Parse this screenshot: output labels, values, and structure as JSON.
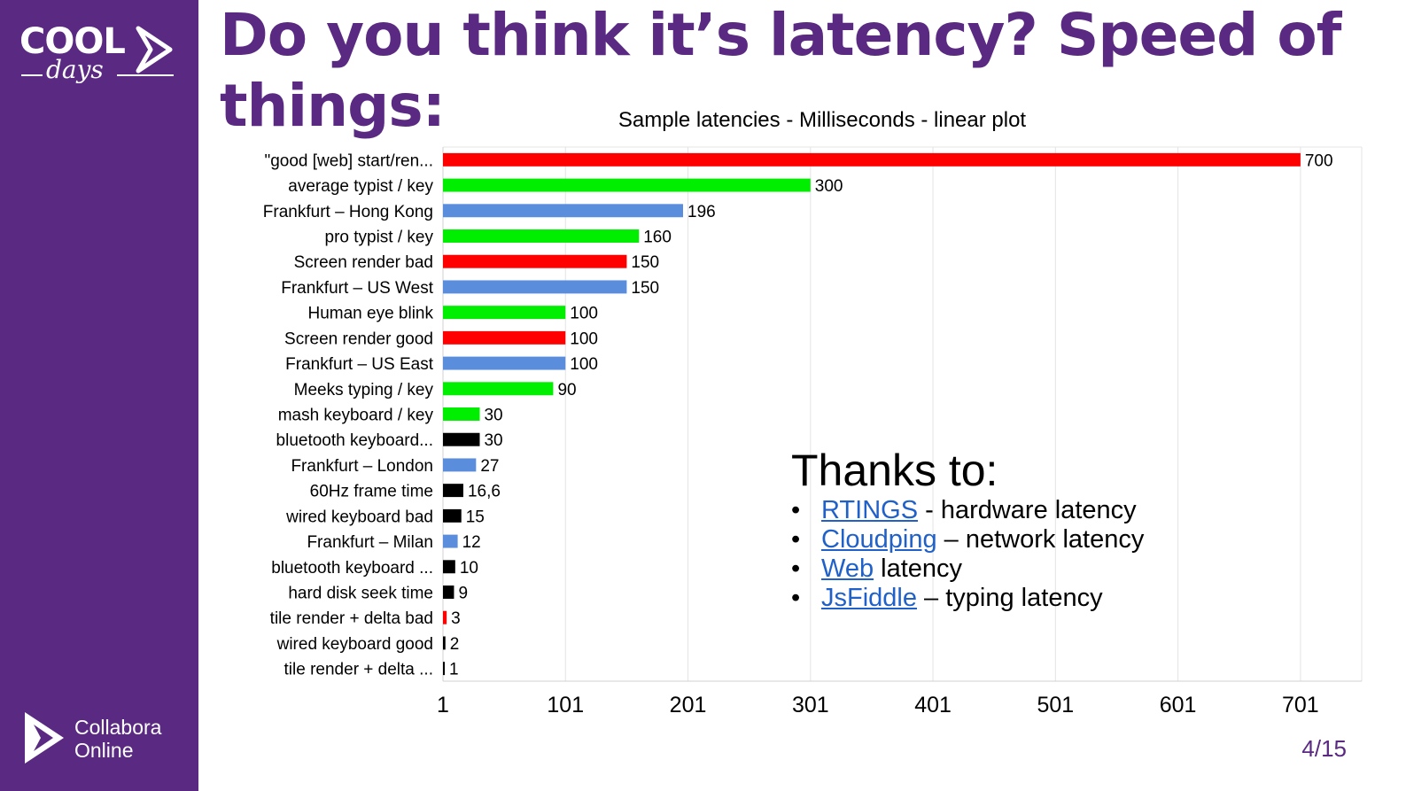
{
  "slide": {
    "title": "Do you think it’s latency? Speed of things:",
    "page_number": "4/15"
  },
  "brand": {
    "cool_word": "COOL",
    "cool_sub": "days",
    "collabora_line1": "Collabora",
    "collabora_line2": "Online",
    "sidebar_color": "#5a2a82"
  },
  "thanks": {
    "heading": "Thanks to:",
    "items": [
      {
        "link": "RTINGS",
        "text": " - hardware latency"
      },
      {
        "link": "Cloudping",
        "text": " – network latency"
      },
      {
        "link": "Web",
        "text": " latency"
      },
      {
        "link": "JsFiddle",
        "text": " – typing latency"
      }
    ]
  },
  "chart_data": {
    "type": "bar",
    "orientation": "horizontal",
    "title": "Sample latencies - Milliseconds - linear plot",
    "xlim": [
      1,
      751
    ],
    "x_ticks": [
      "1",
      "101",
      "201",
      "301",
      "401",
      "501",
      "601",
      "701"
    ],
    "x_tick_values": [
      1,
      101,
      201,
      301,
      401,
      501,
      601,
      701
    ],
    "grid": true,
    "categories": [
      "\"good [web] start/ren...",
      "average typist / key",
      "Frankfurt – Hong Kong",
      "pro typist / key",
      "Screen render bad",
      "Frankfurt – US West",
      "Human eye blink",
      "Screen render good",
      "Frankfurt – US East",
      "Meeks typing / key",
      "mash keyboard / key",
      "bluetooth keyboard...",
      "Frankfurt – London",
      "60Hz frame time",
      "wired keyboard bad",
      "Frankfurt – Milan",
      "bluetooth keyboard ...",
      "hard disk seek time",
      "tile render + delta bad",
      "wired keyboard good",
      "tile render + delta ..."
    ],
    "values": [
      700,
      300,
      196,
      160,
      150,
      150,
      100,
      100,
      100,
      90,
      30,
      30,
      27,
      16.6,
      15,
      12,
      10,
      9,
      3,
      2,
      1
    ],
    "value_labels": [
      "700",
      "300",
      "196",
      "160",
      "150",
      "150",
      "100",
      "100",
      "100",
      "90",
      "30",
      "30",
      "27",
      "16,6",
      "15",
      "12",
      "10",
      "9",
      "3",
      "2",
      "1"
    ],
    "colors": [
      "#ff0000",
      "#00ee00",
      "#5b8ddd",
      "#00ee00",
      "#ff0000",
      "#5b8ddd",
      "#00ee00",
      "#ff0000",
      "#5b8ddd",
      "#00ee00",
      "#00ee00",
      "#000000",
      "#5b8ddd",
      "#000000",
      "#000000",
      "#5b8ddd",
      "#000000",
      "#000000",
      "#ff0000",
      "#000000",
      "#000000"
    ]
  }
}
